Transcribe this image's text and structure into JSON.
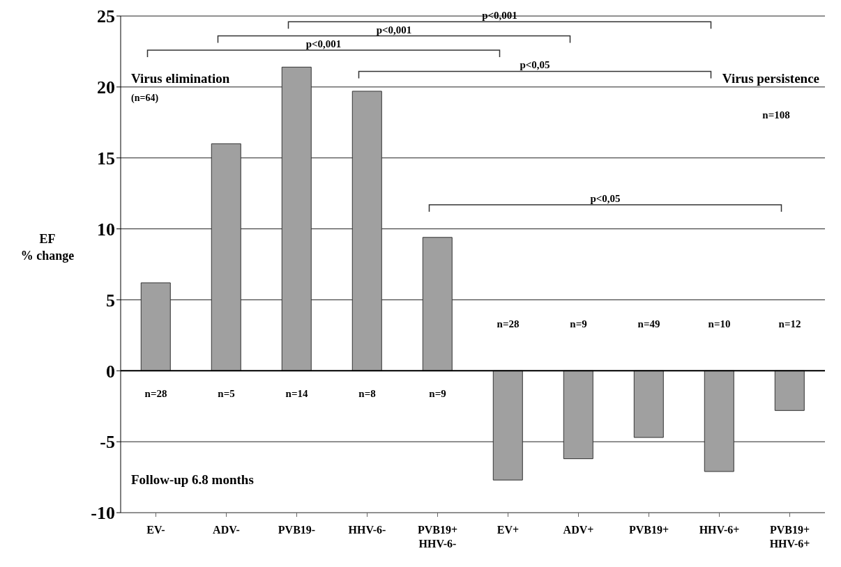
{
  "chart_data": {
    "type": "bar",
    "ylabel": "EF\n% change",
    "categories": [
      "EV-",
      "ADV-",
      "PVB19-",
      "HHV-6-",
      "PVB19+\nHHV-6-",
      "EV+",
      "ADV+",
      "PVB19+",
      "HHV-6+",
      "PVB19+\nHHV-6+"
    ],
    "values": [
      6.2,
      16.0,
      21.4,
      19.7,
      9.4,
      -7.7,
      -6.2,
      -4.7,
      -7.1,
      -2.8
    ],
    "color": "#a0a0a0",
    "ylim": [
      -10,
      25
    ],
    "yticks": [
      -10,
      -5,
      0,
      5,
      10,
      15,
      20,
      25
    ],
    "grid": "y",
    "annotations": [
      "p<0,001",
      "p<0,001",
      "p<0,001",
      "p<0,05",
      "p<0,05",
      "Virus elimination",
      "(n=64)",
      "Virus persistence",
      "n=108",
      "Follow-up 6.8 months",
      "n=28",
      "n=5",
      "n=14",
      "n=8",
      "n=9",
      "n=28",
      "n=9",
      "n=49",
      "n=10",
      "n=12"
    ]
  }
}
